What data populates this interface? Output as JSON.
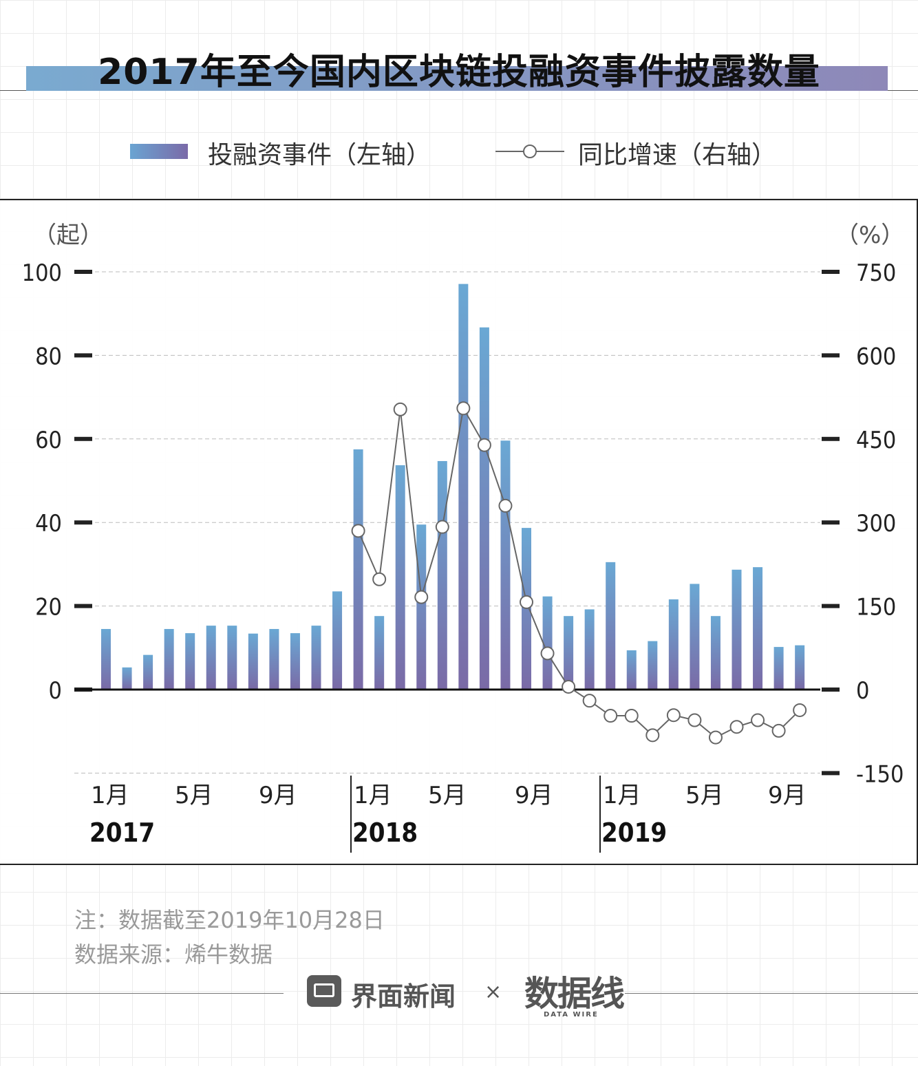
{
  "title": "2017年至今国内区块链投融资事件披露数量",
  "legend": {
    "bar_label": "投融资事件（左轴）",
    "line_label": "同比增速（右轴）"
  },
  "axes": {
    "left_unit": "（起）",
    "right_unit": "（%）"
  },
  "colors": {
    "bar_top": "#6aa8d4",
    "bar_bottom": "#7a6aa6",
    "line": "#666666",
    "marker_fill": "#ffffff"
  },
  "chart_data": {
    "type": "bar",
    "x": [
      "2017-01",
      "2017-02",
      "2017-03",
      "2017-04",
      "2017-05",
      "2017-06",
      "2017-07",
      "2017-08",
      "2017-09",
      "2017-10",
      "2017-11",
      "2017-12",
      "2018-01",
      "2018-02",
      "2018-03",
      "2018-04",
      "2018-05",
      "2018-06",
      "2018-07",
      "2018-08",
      "2018-09",
      "2018-10",
      "2018-11",
      "2018-12",
      "2019-01",
      "2019-02",
      "2019-03",
      "2019-04",
      "2019-05",
      "2019-06",
      "2019-07",
      "2019-08",
      "2019-09",
      "2019-10"
    ],
    "x_tick_labels": [
      {
        "month": "1月",
        "year": "2017"
      },
      {
        "month": "5月",
        "year": ""
      },
      {
        "month": "9月",
        "year": ""
      },
      {
        "month": "1月",
        "year": "2018"
      },
      {
        "month": "5月",
        "year": ""
      },
      {
        "month": "9月",
        "year": ""
      },
      {
        "month": "1月",
        "year": "2019"
      },
      {
        "month": "5月",
        "year": ""
      },
      {
        "month": "9月",
        "year": ""
      }
    ],
    "series": [
      {
        "name": "投融资事件（左轴）",
        "type": "bar",
        "axis": "left",
        "values": [
          14.5,
          5.3,
          8.3,
          14.5,
          13.5,
          15.3,
          15.3,
          13.4,
          14.5,
          13.5,
          15.3,
          23.5,
          57.5,
          17.6,
          53.7,
          39.5,
          54.7,
          97.1,
          86.7,
          59.6,
          38.7,
          22.3,
          17.6,
          19.2,
          30.5,
          9.4,
          11.6,
          21.6,
          25.3,
          17.6,
          28.7,
          29.3,
          10.2,
          10.6
        ]
      },
      {
        "name": "同比增速（右轴）",
        "type": "line",
        "axis": "right",
        "values": [
          null,
          null,
          null,
          null,
          null,
          null,
          null,
          null,
          null,
          null,
          null,
          null,
          285,
          198,
          503,
          166,
          292,
          505,
          439,
          330,
          157,
          65,
          5,
          -20,
          -47,
          -47,
          -82,
          -46,
          -55,
          -86,
          -67,
          -55,
          -74,
          -37
        ]
      }
    ],
    "left_axis": {
      "min": 0,
      "max": 100,
      "ticks": [
        0,
        20,
        40,
        60,
        80,
        100
      ],
      "label": "（起）"
    },
    "right_axis": {
      "min": -150,
      "max": 750,
      "ticks": [
        -150,
        0,
        150,
        300,
        450,
        600,
        750
      ],
      "label": "（%）"
    },
    "grid": "horizontal dashed",
    "legend_position": "top"
  },
  "notes": {
    "cutoff": "注：数据截至2019年10月28日",
    "source": "数据来源：烯牛数据"
  },
  "brand": {
    "name": "界面新闻",
    "separator": "×",
    "partner": "数据线",
    "partner_sub": "DATA WIRE"
  }
}
